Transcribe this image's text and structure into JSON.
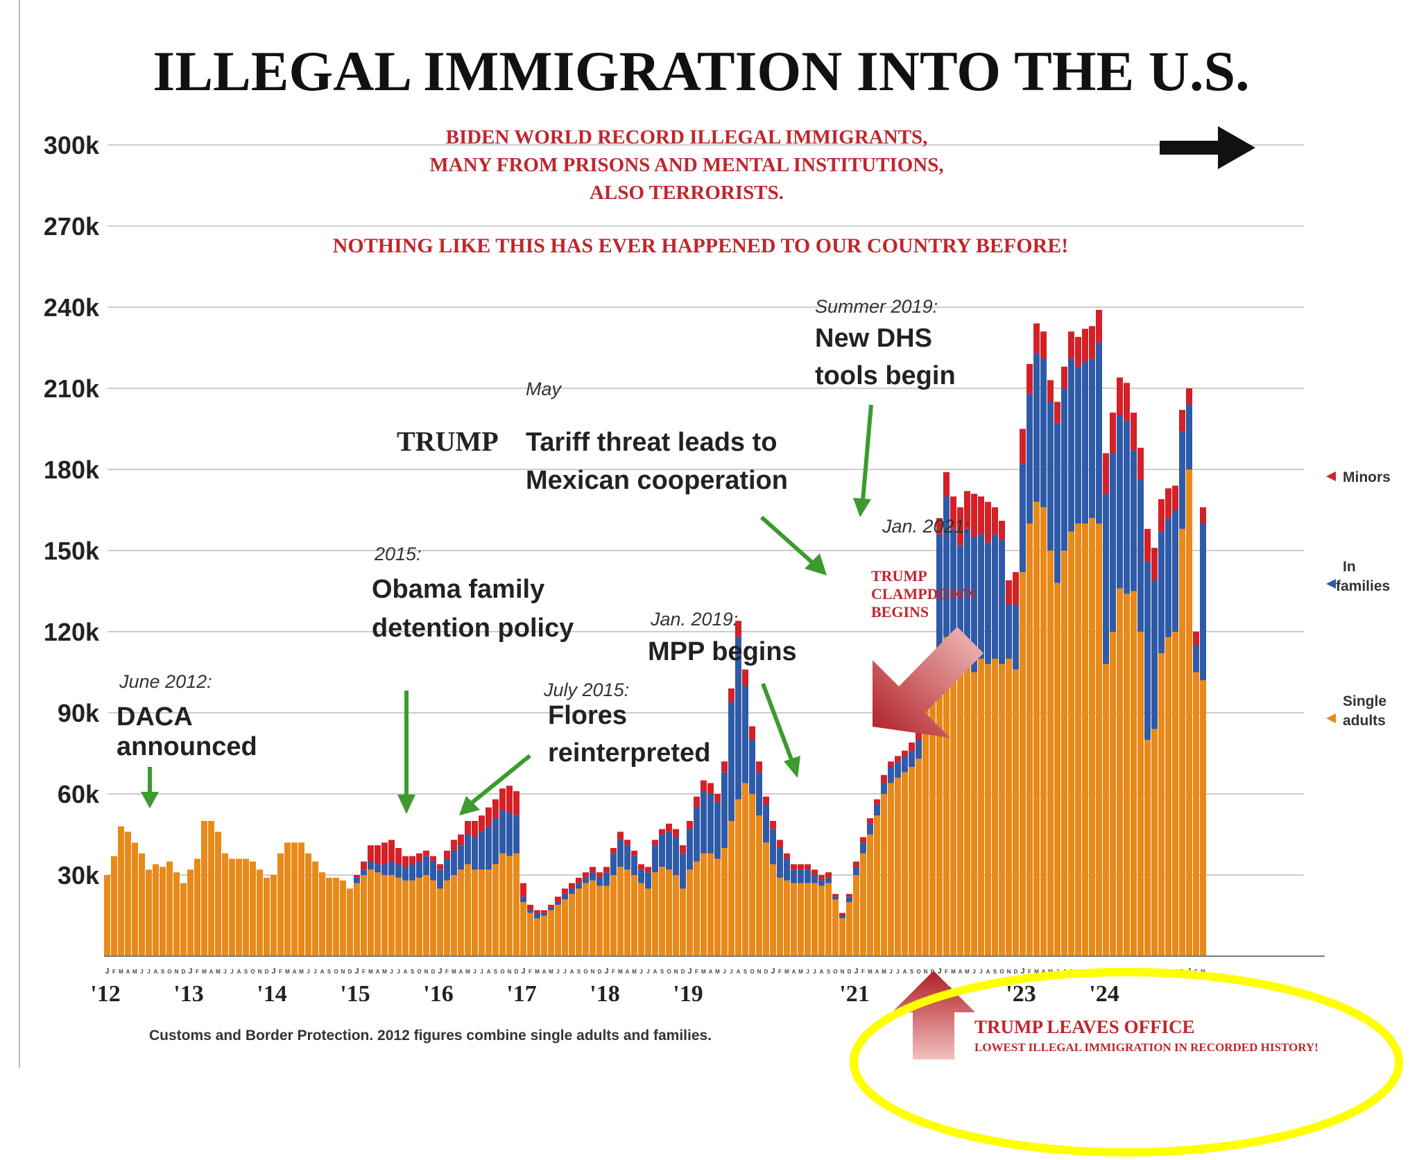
{
  "title": "ILLEGAL IMMIGRATION INTO THE U.S.",
  "red_note": {
    "line1": "BIDEN WORLD RECORD ILLEGAL IMMIGRANTS,",
    "line2": "MANY FROM PRISONS AND MENTAL INSTITUTIONS,",
    "line3": "ALSO TERRORISTS.",
    "line4": "NOTHING LIKE THIS HAS EVER HAPPENED TO OUR COUNTRY BEFORE!"
  },
  "annotations": {
    "daca": {
      "date": "June 2012:",
      "line1": "DACA",
      "line2": "announced"
    },
    "obama": {
      "date": "2015:",
      "line1": "Obama family",
      "line2": "detention policy"
    },
    "flores": {
      "date": "July 2015:",
      "line1": "Flores",
      "line2": "reinterpreted"
    },
    "mpp": {
      "date": "Jan. 2019:",
      "line1": "MPP begins"
    },
    "tariff": {
      "date": "May",
      "trump": "TRUMP",
      "line1": "Tariff threat leads to",
      "line2": "Mexican cooperation"
    },
    "dhs": {
      "date": "Summer 2019:",
      "line1": "New DHS",
      "line2": "tools begin"
    },
    "jan2021": {
      "date": "Jan. 2021:"
    },
    "clampdown": {
      "line1": "TRUMP",
      "line2": "CLAMPDOWN",
      "line3": "BEGINS"
    },
    "leaves": {
      "line1": "TRUMP LEAVES OFFICE",
      "line2": "LOWEST ILLEGAL IMMIGRATION IN RECORDED HISTORY!"
    }
  },
  "legend": {
    "minors": "Minors",
    "families_1": "In",
    "families_2": "families",
    "singles_1": "Single",
    "singles_2": "adults"
  },
  "source": "Customs and Border Protection. 2012 figures combine single adults and families.",
  "month_letters": "JFMAMJJASOND",
  "colors": {
    "single_adults": "#e8891a",
    "in_families": "#2e5aa8",
    "minors": "#d42027",
    "arrow_green": "#3c9a2e",
    "arrow_red": "#c0262c",
    "highlight": "#ffff00",
    "title": "#111111"
  },
  "chart_data": {
    "type": "bar",
    "stacked": true,
    "title": "ILLEGAL IMMIGRATION INTO THE U.S.",
    "x_start": "2012-01",
    "x_end": "2024-02",
    "x_tick_labels": [
      "'12",
      "'13",
      "'14",
      "'15",
      "'16",
      "'17",
      "'18",
      "'19",
      "'21",
      "'22",
      "'23",
      "'24"
    ],
    "y_tick_labels": [
      "30k",
      "60k",
      "90k",
      "120k",
      "150k",
      "180k",
      "210k",
      "240k",
      "270k",
      "300k"
    ],
    "ylim": [
      0,
      305000
    ],
    "series": [
      {
        "name": "Single adults",
        "values": [
          30000,
          37000,
          48000,
          46000,
          42000,
          38000,
          32000,
          34000,
          33000,
          35000,
          31000,
          27000,
          32000,
          36000,
          50000,
          50000,
          46000,
          38000,
          36000,
          36000,
          36000,
          35000,
          32000,
          29000,
          30000,
          38000,
          42000,
          42000,
          42000,
          38000,
          35000,
          31000,
          29000,
          29000,
          28000,
          25000,
          27000,
          30000,
          32000,
          31000,
          30000,
          30000,
          29000,
          28000,
          28000,
          29000,
          30000,
          28000,
          25000,
          28000,
          30000,
          32000,
          34000,
          32000,
          32000,
          32000,
          34000,
          38000,
          37000,
          38000,
          20000,
          16000,
          14000,
          15000,
          17000,
          19000,
          21000,
          23000,
          25000,
          27000,
          28000,
          26000,
          26000,
          30000,
          33000,
          32000,
          30000,
          27000,
          25000,
          31000,
          33000,
          32000,
          30000,
          25000,
          32000,
          35000,
          38000,
          38000,
          36000,
          40000,
          50000,
          58000,
          64000,
          60000,
          52000,
          42000,
          34000,
          29000,
          28000,
          27000,
          27000,
          27000,
          27000,
          26000,
          27000,
          21000,
          14000,
          20000,
          30000,
          38000,
          45000,
          52000,
          60000,
          64000,
          66000,
          68000,
          70000,
          73000,
          92000,
          96000,
          114000,
          118000,
          112000,
          106000,
          112000,
          105000,
          110000,
          108000,
          110000,
          108000,
          110000,
          106000,
          142000,
          160000,
          168000,
          166000,
          150000,
          138000,
          150000,
          157000,
          160000,
          160000,
          162000,
          160000,
          108000,
          120000,
          136000,
          134000,
          135000,
          120000,
          80000,
          84000,
          112000,
          118000,
          120000,
          158000,
          180000,
          105000,
          102000
        ],
        "stack_order": 1
      },
      {
        "name": "In families",
        "values": [
          0,
          0,
          0,
          0,
          0,
          0,
          0,
          0,
          0,
          0,
          0,
          0,
          0,
          0,
          0,
          0,
          0,
          0,
          0,
          0,
          0,
          0,
          0,
          0,
          0,
          0,
          0,
          0,
          0,
          0,
          0,
          0,
          0,
          0,
          0,
          0,
          2000,
          2000,
          3000,
          3000,
          4000,
          5000,
          5000,
          5000,
          6000,
          6000,
          7000,
          7000,
          7000,
          8000,
          9000,
          9000,
          11000,
          12000,
          14000,
          16000,
          17000,
          16000,
          16000,
          14000,
          2000,
          1000,
          2000,
          1000,
          1000,
          1000,
          2000,
          2000,
          2000,
          2000,
          3000,
          3000,
          5000,
          8000,
          10000,
          9000,
          7000,
          5000,
          6000,
          10000,
          12000,
          14000,
          14000,
          13000,
          15000,
          20000,
          23000,
          22000,
          21000,
          28000,
          44000,
          60000,
          36000,
          20000,
          16000,
          14000,
          13000,
          11000,
          8000,
          5000,
          5000,
          5000,
          3000,
          2000,
          2000,
          1000,
          1000,
          2000,
          3000,
          4000,
          4000,
          4000,
          4000,
          6000,
          6000,
          6000,
          6000,
          7000,
          7000,
          9000,
          42000,
          52000,
          46000,
          46000,
          46000,
          50000,
          46000,
          45000,
          46000,
          46000,
          20000,
          24000,
          40000,
          48000,
          55000,
          55000,
          55000,
          59000,
          60000,
          64000,
          58000,
          60000,
          59000,
          67000,
          63000,
          66000,
          64000,
          64000,
          52000,
          56000,
          66000,
          55000,
          45000,
          44000,
          45000,
          36000,
          24000,
          10000,
          58000,
          60000,
          72000,
          88000,
          80000,
          62000,
          68000
        ],
        "stack_order": 2
      },
      {
        "name": "Minors",
        "values": [
          0,
          0,
          0,
          0,
          0,
          0,
          0,
          0,
          0,
          0,
          0,
          0,
          0,
          0,
          0,
          0,
          0,
          0,
          0,
          0,
          0,
          0,
          0,
          0,
          0,
          0,
          0,
          0,
          0,
          0,
          0,
          0,
          0,
          0,
          0,
          0,
          1000,
          3000,
          6000,
          7000,
          8000,
          8000,
          6000,
          4000,
          3000,
          3000,
          2000,
          2000,
          2000,
          3000,
          4000,
          4000,
          5000,
          6000,
          6000,
          7000,
          7000,
          8000,
          10000,
          9000,
          5000,
          2000,
          1000,
          1000,
          1000,
          2000,
          2000,
          2000,
          2000,
          2000,
          2000,
          2000,
          2000,
          2000,
          3000,
          2000,
          2000,
          2000,
          2000,
          2000,
          2000,
          3000,
          3000,
          3000,
          3000,
          4000,
          4000,
          4000,
          3000,
          4000,
          5000,
          6000,
          6000,
          5000,
          4000,
          3000,
          3000,
          3000,
          2000,
          2000,
          2000,
          2000,
          2000,
          2000,
          2000,
          1000,
          1000,
          1000,
          2000,
          2000,
          2000,
          2000,
          3000,
          2000,
          2000,
          2000,
          3000,
          3000,
          4000,
          5000,
          6000,
          9000,
          12000,
          14000,
          14000,
          16000,
          14000,
          15000,
          10000,
          7000,
          9000,
          12000,
          13000,
          11000,
          11000,
          10000,
          8000,
          8000,
          8000,
          10000,
          11000,
          12000,
          12000,
          12000,
          15000,
          15000,
          14000,
          14000,
          14000,
          12000,
          12000,
          12000,
          12000,
          11000,
          9000,
          8000,
          6000,
          5000,
          6000,
          7000,
          6000,
          4000,
          3000
        ],
        "stack_order": 3
      }
    ],
    "legend_placement": "right",
    "grid": "horizontal"
  }
}
